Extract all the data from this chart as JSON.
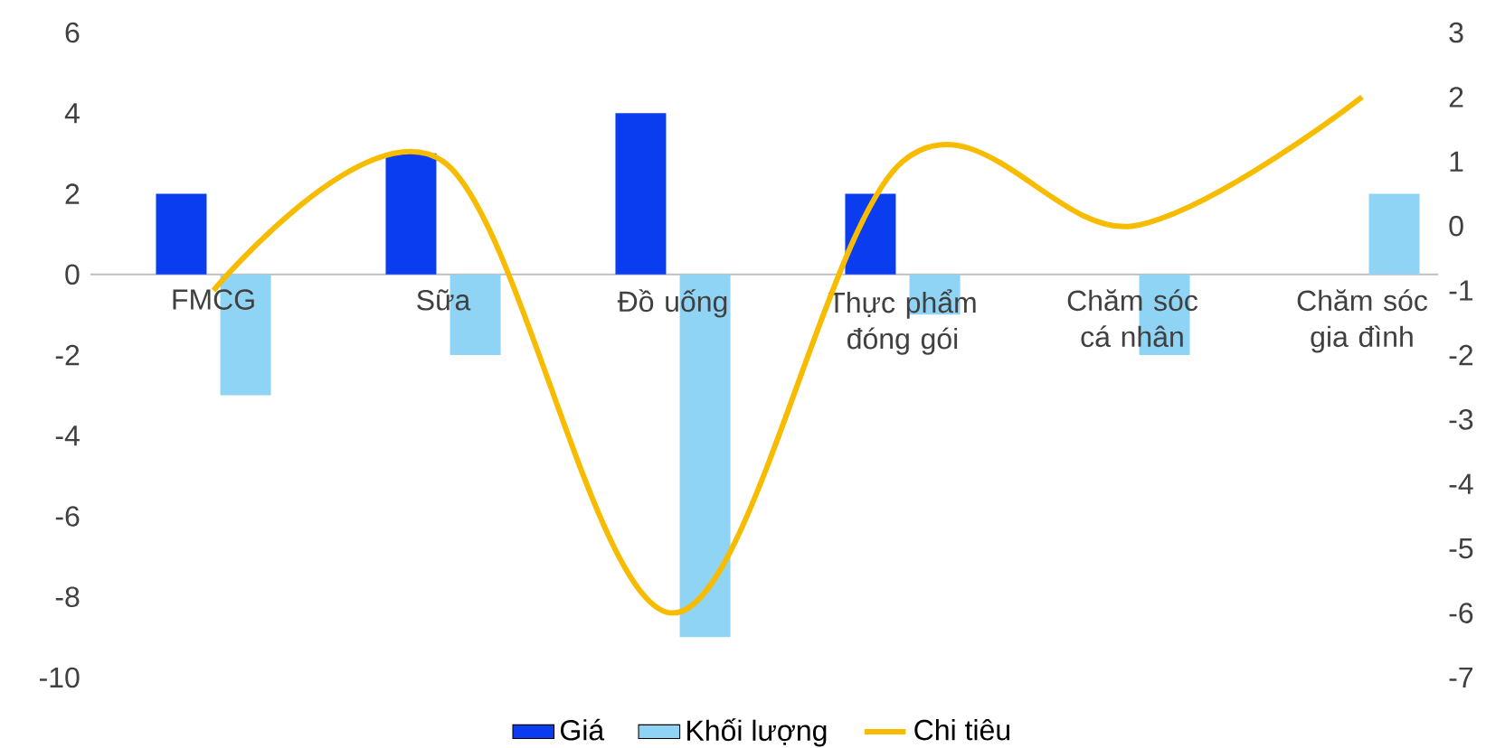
{
  "chart_data": {
    "type": "bar",
    "categories": [
      "FMCG",
      "Sữa",
      "Đồ uống",
      "Thực phẩm đóng gói",
      "Chăm sóc cá nhân",
      "Chăm sóc gia đình"
    ],
    "series": [
      {
        "name": "Giá",
        "color": "#0a3cf0",
        "values": [
          2,
          3,
          4,
          2,
          0,
          0
        ]
      },
      {
        "name": "Khối lượng",
        "color": "#8fd4f5",
        "values": [
          -3,
          -2,
          -9,
          -1,
          -2,
          2
        ]
      },
      {
        "name": "Chi tiêu",
        "type": "line",
        "axis": "y2",
        "color": "#f7bc00",
        "values": [
          -1,
          1,
          -6,
          1,
          0,
          2
        ]
      }
    ],
    "ylim": [
      -10,
      6
    ],
    "yticks": [
      -10,
      -8,
      -6,
      -4,
      -2,
      0,
      2,
      4,
      6
    ],
    "y2lim": [
      -7,
      3
    ],
    "y2ticks": [
      -7,
      -6,
      -5,
      -4,
      -3,
      -2,
      -1,
      0,
      1,
      2,
      3
    ],
    "legend": "bottom"
  }
}
